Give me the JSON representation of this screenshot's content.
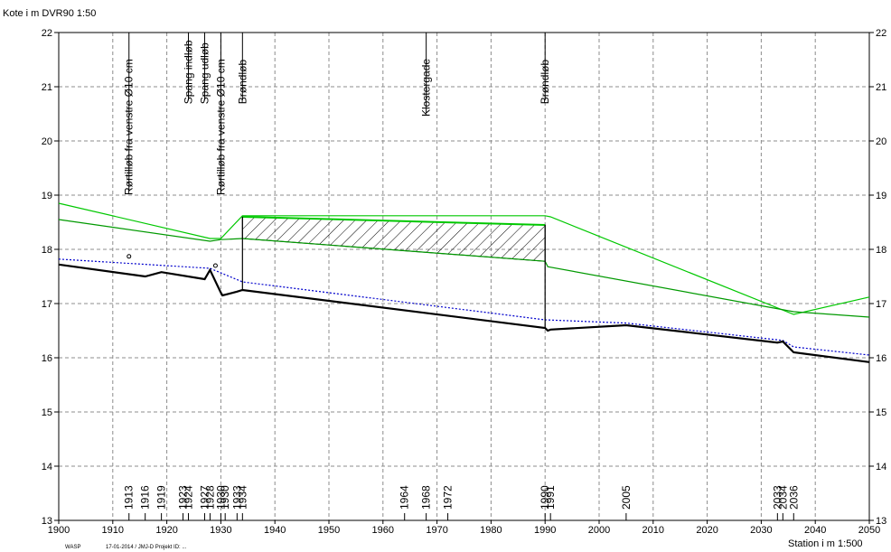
{
  "header": {
    "y_axis_title": "Kote i m DVR90 1:50",
    "x_axis_title": "Station i m 1:500",
    "footer_program": "WASP",
    "footer_info": "17-01-2014 / JMJ-D   Projekt ID: ..."
  },
  "colors": {
    "terrain": "#00c800",
    "water_level": "#009900",
    "pipe_bottom": "#000000",
    "pipe_top": "#0000cc"
  },
  "chart_data": {
    "type": "line",
    "xlim": [
      1900,
      2050
    ],
    "ylim": [
      13,
      22
    ],
    "x_ticks": [
      "1900",
      "1910",
      "1920",
      "1930",
      "1940",
      "1950",
      "1960",
      "1970",
      "1980",
      "1990",
      "2000",
      "2010",
      "2020",
      "2030",
      "2040",
      "2050"
    ],
    "y_ticks": [
      "13",
      "14",
      "15",
      "16",
      "17",
      "18",
      "19",
      "20",
      "21",
      "22"
    ],
    "grid": true,
    "series": [
      {
        "key": "terrain",
        "x": [
          1900,
          1928,
          1930,
          1934,
          1990,
          1991,
          2036,
          2050
        ],
        "y": [
          18.85,
          18.2,
          18.2,
          18.62,
          18.62,
          18.6,
          16.8,
          17.12
        ]
      },
      {
        "key": "water_level",
        "x": [
          1900,
          1928,
          1930,
          1934,
          1990,
          1990.5,
          2036,
          2050
        ],
        "y": [
          18.55,
          18.15,
          18.18,
          18.2,
          17.78,
          17.68,
          16.85,
          16.75
        ]
      },
      {
        "key": "pipe_top",
        "x": [
          1900,
          1928,
          1934,
          1990,
          2005,
          2034,
          2036,
          2050
        ],
        "y": [
          17.82,
          17.65,
          17.4,
          16.7,
          16.64,
          16.32,
          16.2,
          16.05
        ]
      },
      {
        "key": "pipe_bottom",
        "x": [
          1900,
          1916,
          1919,
          1927,
          1928,
          1930,
          1930.3,
          1933,
          1934,
          1990,
          1990.5,
          1991,
          2005,
          2033,
          2034,
          2036,
          2050
        ],
        "y": [
          17.72,
          17.5,
          17.58,
          17.45,
          17.62,
          17.2,
          17.15,
          17.22,
          17.25,
          16.55,
          16.5,
          16.52,
          16.6,
          16.28,
          16.3,
          16.1,
          15.92
        ]
      }
    ],
    "hatch_region": {
      "x_start": 1934,
      "x_end": 1990,
      "y_top": [
        18.6,
        18.45
      ],
      "y_bottom": [
        18.2,
        17.78
      ]
    },
    "vertical_lines": [
      {
        "x": 1934,
        "y_from": 17.25,
        "y_to": 18.6
      },
      {
        "x": 1990,
        "y_from": 16.55,
        "y_to": 18.45
      }
    ],
    "markers": [
      {
        "x": 1913,
        "y": 17.87
      },
      {
        "x": 1929,
        "y": 17.7
      }
    ],
    "annotations": [
      {
        "x": 1913,
        "text": "Rørtilløb fra venstre Ø10 cm",
        "y_top": 19.0
      },
      {
        "x": 1924,
        "text": "Spang indløb",
        "y_top": 20.68
      },
      {
        "x": 1927,
        "text": "Spang udløb",
        "y_top": 20.68
      },
      {
        "x": 1930,
        "text": "Rørtilløb fra venstre Ø10 cm",
        "y_top": 19.0
      },
      {
        "x": 1934,
        "text": "Brøndløb",
        "y_top": 20.68
      },
      {
        "x": 1968,
        "text": "Klostergade",
        "y_top": 20.45
      },
      {
        "x": 1990,
        "text": "Brøndløb",
        "y_top": 20.68
      }
    ],
    "station_labels": [
      "1913",
      "1916",
      "1919",
      "1923",
      "1924",
      "1927",
      "1928",
      "1930",
      "1930",
      "1933",
      "1934",
      "1964",
      "1968",
      "1972",
      "1990",
      "1991",
      "2005",
      "2033",
      "2034",
      "2036"
    ],
    "station_x": [
      1913,
      1916,
      1919,
      1923,
      1924,
      1927,
      1928,
      1930,
      1930.8,
      1933,
      1934,
      1964,
      1968,
      1972,
      1990,
      1991,
      2005,
      2033,
      2034,
      2036
    ]
  }
}
